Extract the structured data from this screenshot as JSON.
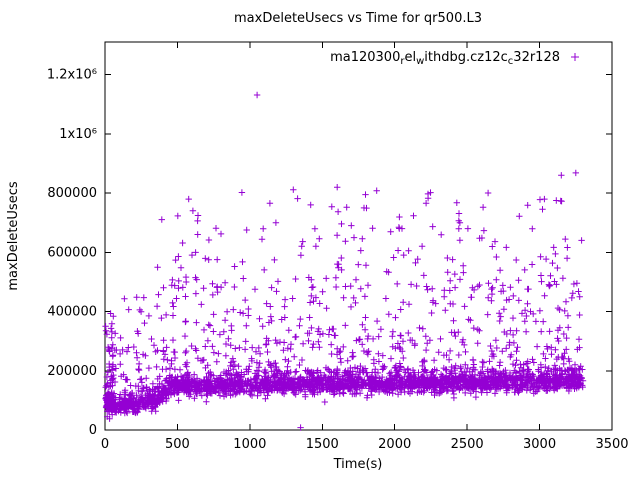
{
  "chart_data": {
    "type": "scatter",
    "title": "maxDeleteUsecs vs Time for qr500.L3",
    "xlabel": "Time(s)",
    "ylabel": "maxDeleteUsecs",
    "xlim": [
      0,
      3500
    ],
    "ylim": [
      0,
      1310000
    ],
    "grid": false,
    "xticks": {
      "values": [
        0,
        500,
        1000,
        1500,
        2000,
        2500,
        3000,
        3500
      ],
      "labels": [
        "0",
        "500",
        "1000",
        "1500",
        "2000",
        "2500",
        "3000",
        "3500"
      ]
    },
    "yticks": {
      "values": [
        0,
        200000,
        400000,
        600000,
        800000,
        1000000,
        1200000
      ],
      "labels": [
        "0",
        "200000",
        "400000",
        "600000",
        "800000",
        "1x10⁶",
        "1.2x10⁶"
      ]
    },
    "legend": {
      "position": "top-right-inside",
      "marker": "plus",
      "color": "#9400D3",
      "series_name": "ma120300_rel_withdbg.cz12c_c32r128",
      "label_segments": [
        {
          "text": "ma120300"
        },
        {
          "text": "r",
          "sub": true
        },
        {
          "text": "el"
        },
        {
          "text": "w",
          "sub": true
        },
        {
          "text": "ithdbg.cz12c"
        },
        {
          "text": "c",
          "sub": true
        },
        {
          "text": "32r128"
        }
      ]
    },
    "scatter_model": {
      "seed": 20240521,
      "marker": "plus",
      "marker_color": "#9400D3",
      "band": {
        "count": 2400,
        "x_range": [
          3,
          3300
        ],
        "mean_points": [
          [
            0,
            110000
          ],
          [
            40,
            88000
          ],
          [
            130,
            86000
          ],
          [
            250,
            93000
          ],
          [
            360,
            103000
          ],
          [
            430,
            140000
          ],
          [
            520,
            149000
          ],
          [
            900,
            152000
          ],
          [
            1500,
            156000
          ],
          [
            2200,
            159000
          ],
          [
            2800,
            162000
          ],
          [
            3300,
            167000
          ]
        ],
        "sd": 16000,
        "y_min": 55000
      },
      "mid": {
        "count": 640,
        "x_range": [
          60,
          3300
        ],
        "above_band": 35000,
        "y_max": 480000,
        "power": 2.2
      },
      "high": {
        "count": 175,
        "x_range": [
          350,
          3300
        ],
        "y_range": [
          480000,
          820000
        ],
        "power": 1.8
      },
      "left_cluster": {
        "count": 70,
        "x_range": [
          3,
          58
        ],
        "y_range": [
          60000,
          400000
        ],
        "power": 1.6
      },
      "low_stragglers": [
        [
          15,
          45000
        ],
        [
          32,
          38000
        ],
        [
          50,
          52000
        ],
        [
          70,
          60000
        ]
      ],
      "outliers": [
        [
          1050,
          1131000
        ],
        [
          945,
          802000
        ],
        [
          1420,
          760000
        ],
        [
          2230,
          797000
        ],
        [
          2610,
          752000
        ],
        [
          2860,
          722000
        ],
        [
          3250,
          868000
        ],
        [
          3150,
          860000
        ],
        [
          1350,
          8000
        ],
        [
          640,
          660000
        ],
        [
          1180,
          700000
        ],
        [
          1700,
          690000
        ],
        [
          2050,
          680000
        ],
        [
          2450,
          700000
        ],
        [
          3020,
          745000
        ],
        [
          3290,
          640000
        ]
      ]
    }
  }
}
